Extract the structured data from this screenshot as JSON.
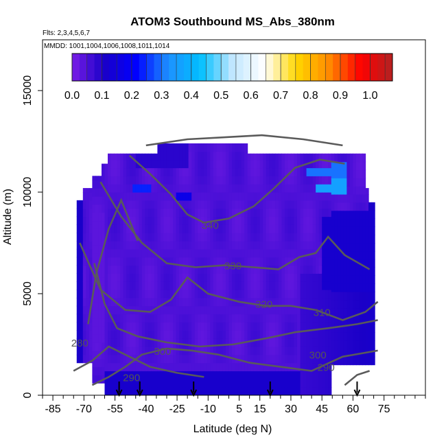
{
  "chart_data": {
    "type": "heatmap",
    "title": "ATOM3 Southbound MS_Abs_380nm",
    "subtitle_flights": "Flts: 2,3,4,5,6,7",
    "subtitle_dates": "MMDD: 1001,1004,1006,1008,1011,1014",
    "xlabel": "Latitude (deg N)",
    "ylabel": "Altitude (m)",
    "xlim": [
      -90,
      95
    ],
    "ylim": [
      0,
      17500
    ],
    "x_ticks": [
      "-85",
      "-70",
      "-55",
      "-40",
      "-25",
      "-10",
      "5",
      "15",
      "30",
      "45",
      "60",
      "75"
    ],
    "x_tick_values": [
      -85,
      -70,
      -55,
      -40,
      -25,
      -10,
      5,
      15,
      30,
      45,
      60,
      75
    ],
    "y_ticks": [
      "0",
      "5000",
      "10000",
      "15000"
    ],
    "y_tick_values": [
      0,
      5000,
      10000,
      15000
    ],
    "colorbar": {
      "ticks": [
        "0.0",
        "0.1",
        "0.2",
        "0.3",
        "0.4",
        "0.5",
        "0.6",
        "0.7",
        "0.8",
        "0.9",
        "1.0"
      ],
      "range": [
        0,
        1.075
      ],
      "colors": [
        "#7a1fe6",
        "#1a00c8",
        "#0000ff",
        "#1e90ff",
        "#00bfff",
        "#bfe6ff",
        "#ffffff",
        "#ffd700",
        "#ff8c00",
        "#ff0000",
        "#b22222"
      ]
    },
    "contours": [
      {
        "label": "280",
        "x": -72,
        "y": 2400
      },
      {
        "label": "290",
        "x": -47,
        "y": 700
      },
      {
        "label": "290",
        "x": 47,
        "y": 1200
      },
      {
        "label": "300",
        "x": -32,
        "y": 2000
      },
      {
        "label": "300",
        "x": 43,
        "y": 1800
      },
      {
        "label": "310",
        "x": 45,
        "y": 3900
      },
      {
        "label": "320",
        "x": 17,
        "y": 4300
      },
      {
        "label": "330",
        "x": 2,
        "y": 6200
      },
      {
        "label": "340",
        "x": -9,
        "y": 8200
      }
    ],
    "arrows_lat": [
      -53,
      -43,
      -17,
      20,
      62
    ]
  }
}
